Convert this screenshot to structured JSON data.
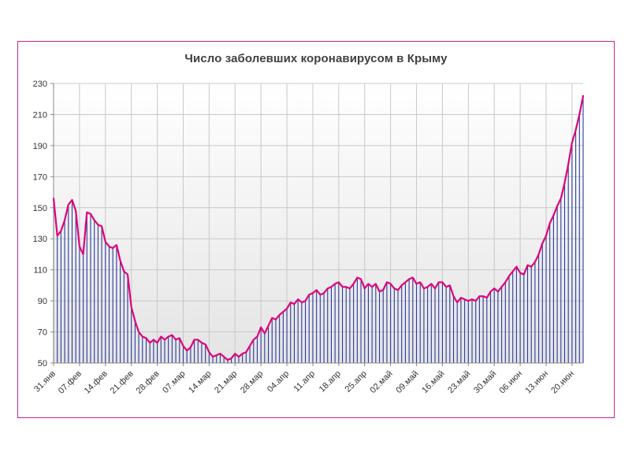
{
  "chart_data": {
    "type": "line",
    "title": "Число заболевших коронавирусом  в Крыму",
    "xlabel": "",
    "ylabel": "",
    "ylim": [
      50,
      230
    ],
    "yticks": [
      50,
      70,
      90,
      110,
      130,
      150,
      170,
      190,
      210,
      230
    ],
    "grid": true,
    "legend": "none",
    "x_tick_labels": [
      "31.янв",
      "07.фев",
      "14.фев",
      "21.фев",
      "28.фев",
      "07.мар",
      "14.мар",
      "21.мар",
      "28.мар",
      "04.апр",
      "11.апр",
      "18.апр",
      "25.апр",
      "02.май",
      "09.май",
      "16.май",
      "23.май",
      "30.май",
      "06.июн",
      "13.июн",
      "20.июн"
    ],
    "series": [
      {
        "line_color": "#e0007a",
        "bar_color": "#2b3a9c",
        "values": [
          156,
          132,
          135,
          142,
          152,
          155,
          148,
          125,
          120,
          147,
          146,
          142,
          139,
          138,
          128,
          125,
          124,
          126,
          116,
          109,
          107,
          86,
          77,
          70,
          67,
          66,
          63,
          65,
          63,
          67,
          65,
          67,
          68,
          65,
          66,
          61,
          58,
          60,
          65,
          65,
          63,
          62,
          57,
          54,
          55,
          56,
          54,
          52,
          53,
          56,
          54,
          56,
          57,
          61,
          65,
          67,
          73,
          69,
          74,
          79,
          78,
          81,
          83,
          85,
          89,
          88,
          91,
          89,
          90,
          94,
          95,
          97,
          94,
          95,
          98,
          99,
          101,
          102,
          99,
          99,
          98,
          101,
          105,
          104,
          98,
          101,
          99,
          101,
          96,
          97,
          102,
          101,
          98,
          97,
          100,
          102,
          104,
          105,
          101,
          102,
          98,
          99,
          101,
          98,
          102,
          102,
          99,
          100,
          93,
          89,
          92,
          91,
          90,
          91,
          90,
          93,
          93,
          92,
          96,
          98,
          96,
          99,
          102,
          106,
          109,
          112,
          108,
          107,
          113,
          112,
          115,
          120,
          127,
          132,
          140,
          145,
          151,
          156,
          166,
          178,
          192,
          200,
          210,
          222
        ]
      }
    ]
  }
}
